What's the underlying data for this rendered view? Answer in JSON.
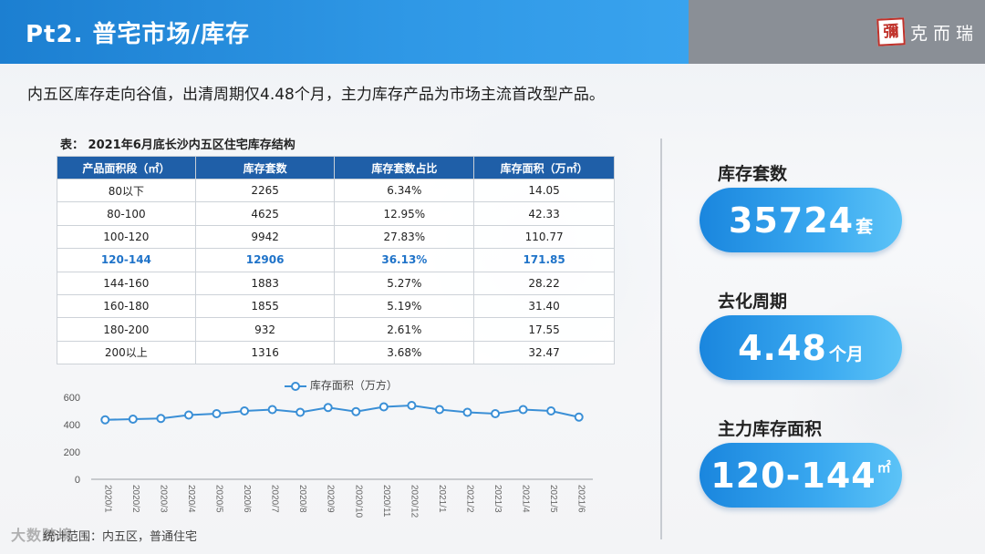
{
  "header": {
    "title": "Pt2. 普宅市场/库存",
    "logo_mark": "彌",
    "logo_text": "克而瑞"
  },
  "subtitle": "内五区库存走向谷值，出清周期仅4.48个月，主力库存产品为市场主流首改型产品。",
  "table": {
    "caption": "表：  2021年6月底长沙内五区住宅库存结构",
    "columns": [
      "产品面积段（㎡）",
      "库存套数",
      "库存套数占比",
      "库存面积（万㎡）"
    ],
    "rows": [
      [
        "80以下",
        "2265",
        "6.34%",
        "14.05"
      ],
      [
        "80-100",
        "4625",
        "12.95%",
        "42.33"
      ],
      [
        "100-120",
        "9942",
        "27.83%",
        "110.77"
      ],
      [
        "120-144",
        "12906",
        "36.13%",
        "171.85"
      ],
      [
        "144-160",
        "1883",
        "5.27%",
        "28.22"
      ],
      [
        "160-180",
        "1855",
        "5.19%",
        "31.40"
      ],
      [
        "180-200",
        "932",
        "2.61%",
        "17.55"
      ],
      [
        "200以上",
        "1316",
        "3.68%",
        "32.47"
      ]
    ],
    "highlight_row": 3,
    "header_color": "#1f5fa8",
    "highlight_color": "#1f73c9"
  },
  "chart_data": {
    "type": "line",
    "categories": [
      "2020/1",
      "2020/2",
      "2020/3",
      "2020/4",
      "2020/5",
      "2020/6",
      "2020/7",
      "2020/8",
      "2020/9",
      "2020/10",
      "2020/11",
      "2020/12",
      "2021/1",
      "2021/2",
      "2021/3",
      "2021/4",
      "2021/5",
      "2021/6"
    ],
    "series": [
      {
        "name": "库存面积（万方）",
        "values": [
          435,
          440,
          445,
          470,
          480,
          500,
          510,
          490,
          525,
          495,
          530,
          540,
          510,
          490,
          480,
          510,
          500,
          455
        ],
        "color": "#3a8fd6"
      }
    ],
    "yticks": [
      "0",
      "200",
      "400",
      "600"
    ],
    "ylim": [
      0,
      600
    ],
    "legend_position": "top",
    "grid": false
  },
  "source_note": "统计范围：内五区，普通住宅",
  "watermark": "大数跨境",
  "kpis": [
    {
      "label": "库存套数",
      "value": "35724",
      "unit": "套"
    },
    {
      "label": "去化周期",
      "value": "4.48",
      "unit": "个月"
    },
    {
      "label": "主力库存面积",
      "value": "120-144",
      "unit": "㎡"
    }
  ]
}
